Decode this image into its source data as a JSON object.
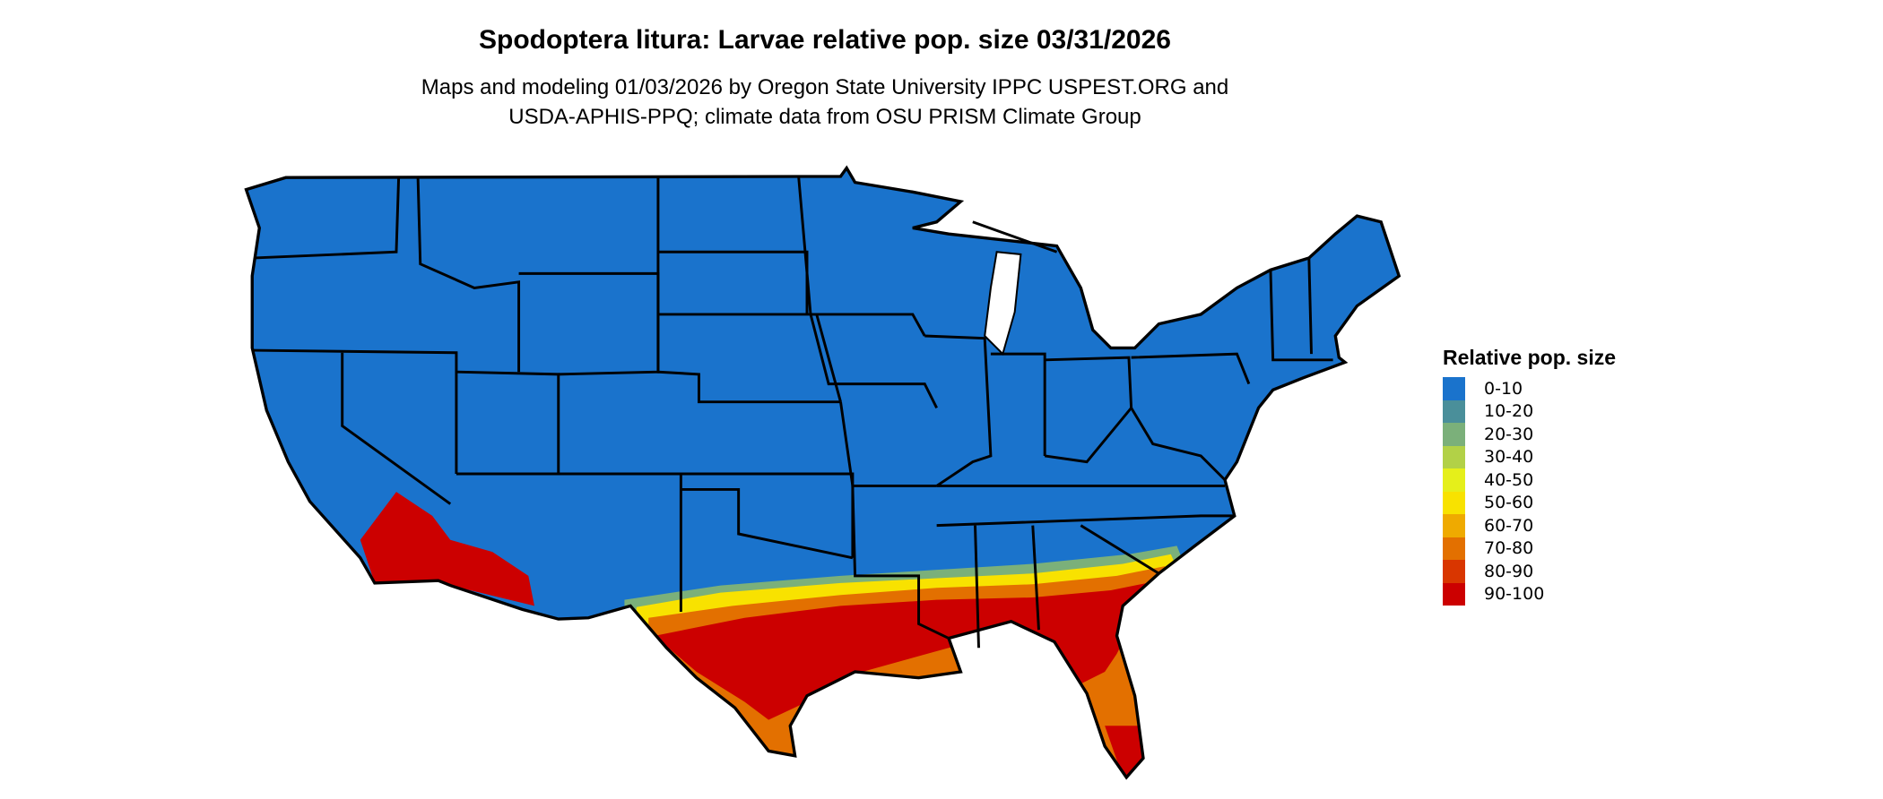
{
  "title": "Spodoptera litura: Larvae relative pop. size 03/31/2026",
  "subtitle_lines": [
    "Maps and modeling 01/03/2026 by Oregon State University IPPC USPEST.ORG and",
    "USDA-APHIS-PPQ; climate data from OSU PRISM Climate Group"
  ],
  "map": {
    "region": "Contiguous United States",
    "base_color": "#1a73cc",
    "border_color": "#000000"
  },
  "legend": {
    "title": "Relative pop. size",
    "items": [
      {
        "label": "0-10",
        "color": "#1a73cc"
      },
      {
        "label": "10-20",
        "color": "#4a8f9a"
      },
      {
        "label": "20-30",
        "color": "#7bb07a"
      },
      {
        "label": "30-40",
        "color": "#b2d147"
      },
      {
        "label": "40-50",
        "color": "#e5ef1a"
      },
      {
        "label": "50-60",
        "color": "#f8e200"
      },
      {
        "label": "60-70",
        "color": "#efaa00"
      },
      {
        "label": "70-80",
        "color": "#e37000"
      },
      {
        "label": "80-90",
        "color": "#d93600"
      },
      {
        "label": "90-100",
        "color": "#cc0000"
      }
    ]
  }
}
